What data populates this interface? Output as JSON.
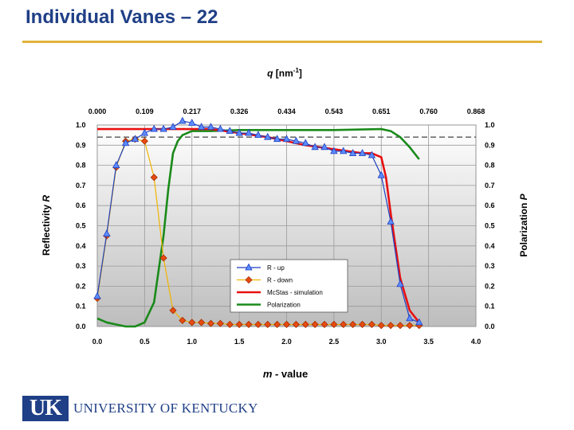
{
  "slide": {
    "title": "Individual Vanes – 22",
    "logo_mark": "UK",
    "logo_text": "UNIVERSITY OF KENTUCKY"
  },
  "colors": {
    "title": "#1f3f86",
    "rule": "#e0b43a",
    "r_up": "#1f3fbf",
    "r_down": "#f0b400",
    "r_down_marker": "#e84a10",
    "mcstas": "#e81010",
    "polarization": "#1a8a1a",
    "reference": "#555555"
  },
  "chart_data": {
    "type": "line",
    "xlabel_italic": "m",
    "xlabel_rest": " - value",
    "ylabel_left_text": "Reflectivity ",
    "ylabel_left_italic": "R",
    "ylabel_right_text": "Polarization ",
    "ylabel_right_italic": "P",
    "top_axis_italic": "q",
    "top_axis_rest": " [nm",
    "top_axis_sup": "-1",
    "top_axis_close": "]",
    "xlim": [
      0,
      4.0
    ],
    "ylim": [
      0,
      1.0
    ],
    "x_ticks": [
      "0.0",
      "0.5",
      "1.0",
      "1.5",
      "2.0",
      "2.5",
      "3.0",
      "3.5",
      "4.0"
    ],
    "y_ticks": [
      "0.0",
      "0.1",
      "0.2",
      "0.3",
      "0.4",
      "0.5",
      "0.6",
      "0.7",
      "0.8",
      "0.9",
      "1.0"
    ],
    "top_ticks": [
      "0.000",
      "0.109",
      "0.217",
      "0.326",
      "0.434",
      "0.543",
      "0.651",
      "0.760",
      "0.868"
    ],
    "grid": true,
    "reference_line_y": 0.94,
    "legend_position": "center-right inside plot",
    "series": [
      {
        "name": "R - up",
        "marker": "triangle",
        "x": [
          0.0,
          0.1,
          0.2,
          0.3,
          0.4,
          0.5,
          0.6,
          0.7,
          0.8,
          0.9,
          1.0,
          1.1,
          1.2,
          1.3,
          1.4,
          1.5,
          1.6,
          1.7,
          1.8,
          1.9,
          2.0,
          2.1,
          2.2,
          2.3,
          2.4,
          2.5,
          2.6,
          2.7,
          2.8,
          2.9,
          3.0,
          3.1,
          3.2,
          3.3,
          3.4
        ],
        "y": [
          0.15,
          0.46,
          0.8,
          0.91,
          0.93,
          0.96,
          0.98,
          0.98,
          0.99,
          1.02,
          1.01,
          0.99,
          0.99,
          0.98,
          0.97,
          0.96,
          0.96,
          0.95,
          0.94,
          0.93,
          0.93,
          0.92,
          0.91,
          0.89,
          0.89,
          0.87,
          0.87,
          0.86,
          0.86,
          0.85,
          0.75,
          0.52,
          0.21,
          0.04,
          0.02
        ]
      },
      {
        "name": "R - down",
        "marker": "diamond",
        "x": [
          0.0,
          0.1,
          0.2,
          0.3,
          0.4,
          0.5,
          0.6,
          0.7,
          0.8,
          0.9,
          1.0,
          1.1,
          1.2,
          1.3,
          1.4,
          1.5,
          1.6,
          1.7,
          1.8,
          1.9,
          2.0,
          2.1,
          2.2,
          2.3,
          2.4,
          2.5,
          2.6,
          2.7,
          2.8,
          2.9,
          3.0,
          3.1,
          3.2,
          3.3,
          3.4
        ],
        "y": [
          0.14,
          0.45,
          0.79,
          0.92,
          0.93,
          0.92,
          0.74,
          0.34,
          0.08,
          0.03,
          0.02,
          0.02,
          0.015,
          0.015,
          0.01,
          0.01,
          0.01,
          0.01,
          0.01,
          0.01,
          0.01,
          0.01,
          0.01,
          0.01,
          0.01,
          0.01,
          0.01,
          0.01,
          0.01,
          0.01,
          0.005,
          0.005,
          0.005,
          0.005,
          0.005
        ]
      },
      {
        "name": "McStas - simulation",
        "marker": "none",
        "x": [
          0.0,
          0.1,
          0.2,
          0.3,
          0.4,
          0.5,
          0.8,
          1.0,
          1.2,
          1.5,
          1.8,
          2.0,
          2.2,
          2.5,
          2.8,
          2.9,
          3.0,
          3.05,
          3.1,
          3.15,
          3.2,
          3.3,
          3.4
        ],
        "y": [
          0.98,
          0.98,
          0.98,
          0.98,
          0.98,
          0.98,
          0.98,
          0.98,
          0.98,
          0.96,
          0.94,
          0.92,
          0.9,
          0.88,
          0.86,
          0.86,
          0.84,
          0.74,
          0.56,
          0.4,
          0.24,
          0.08,
          0.02
        ]
      },
      {
        "name": "Polarization",
        "marker": "none",
        "x": [
          0.0,
          0.1,
          0.2,
          0.3,
          0.4,
          0.5,
          0.6,
          0.7,
          0.75,
          0.8,
          0.85,
          0.9,
          1.0,
          1.2,
          1.5,
          2.0,
          2.5,
          3.0,
          3.1,
          3.2,
          3.3,
          3.4
        ],
        "y": [
          0.04,
          0.02,
          0.01,
          0.0,
          0.0,
          0.02,
          0.12,
          0.45,
          0.68,
          0.86,
          0.92,
          0.95,
          0.97,
          0.97,
          0.975,
          0.975,
          0.975,
          0.98,
          0.97,
          0.94,
          0.89,
          0.83
        ]
      }
    ]
  }
}
